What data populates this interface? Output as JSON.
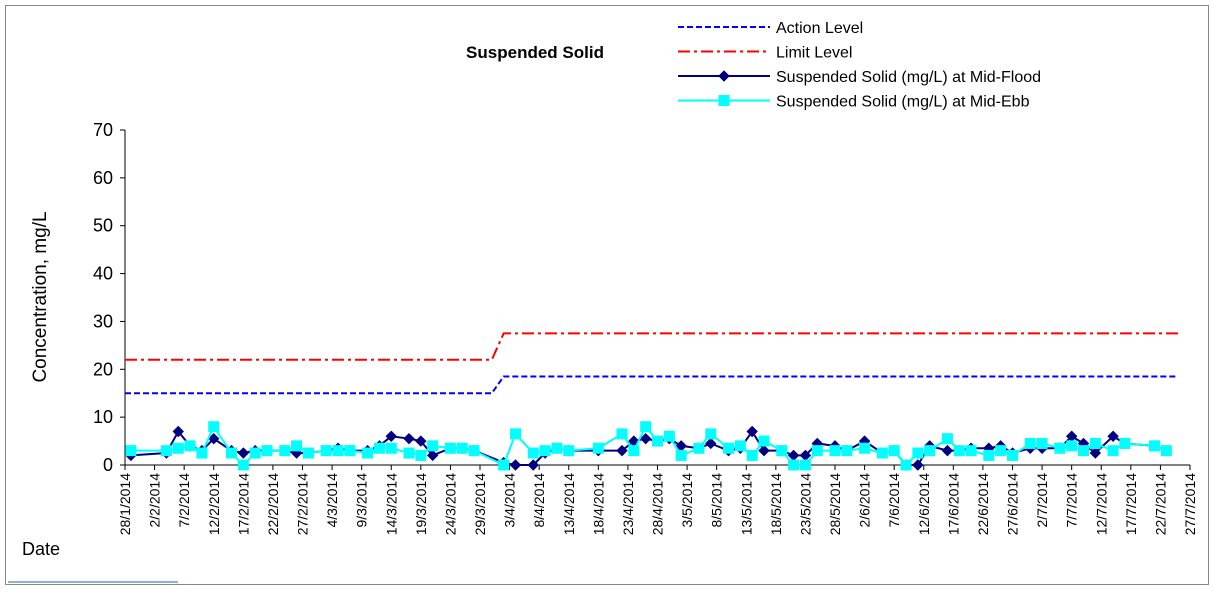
{
  "chart_data": {
    "type": "line",
    "title": "Suspended Solid",
    "ylabel": "Concentration, mg/L",
    "xlabel": "Date",
    "xlim": [
      "28/1/2014",
      "27/7/2014"
    ],
    "xticks": [
      "28/1/2014",
      "2/2/2014",
      "7/2/2014",
      "12/2/2014",
      "17/2/2014",
      "22/2/2014",
      "27/2/2014",
      "4/3/2014",
      "9/3/2014",
      "14/3/2014",
      "19/3/2014",
      "24/3/2014",
      "29/3/2014",
      "3/4/2014",
      "8/4/2014",
      "13/4/2014",
      "18/4/2014",
      "23/4/2014",
      "28/4/2014",
      "3/5/2014",
      "8/5/2014",
      "13/5/2014",
      "18/5/2014",
      "23/5/2014",
      "28/5/2014",
      "2/6/2014",
      "7/6/2014",
      "12/6/2014",
      "17/6/2014",
      "22/6/2014",
      "27/6/2014",
      "2/7/2014",
      "7/7/2014",
      "12/7/2014",
      "17/7/2014",
      "22/7/2014",
      "27/7/2014"
    ],
    "ylim": [
      0,
      70
    ],
    "yticks": [
      0,
      10,
      20,
      30,
      40,
      50,
      60,
      70
    ],
    "series": [
      {
        "name": "Action Level",
        "color": "#0000ff",
        "line_style": "dashed",
        "marker": null,
        "x": [
          "28/1/2014",
          "31/3/2014",
          "2/4/2014",
          "25/7/2014"
        ],
        "values": [
          15,
          15,
          18.5,
          18.5
        ]
      },
      {
        "name": "Limit Level",
        "color": "#ff0000",
        "line_style": "dash-dot",
        "marker": null,
        "x": [
          "28/1/2014",
          "31/3/2014",
          "2/4/2014",
          "25/7/2014"
        ],
        "values": [
          22,
          22,
          27.5,
          27.5
        ]
      },
      {
        "name": "Suspended Solid (mg/L) at Mid-Flood",
        "color": "#000080",
        "line_style": "solid",
        "marker": "diamond",
        "x": [
          "29/1/2014",
          "4/2/2014",
          "6/2/2014",
          "8/2/2014",
          "10/2/2014",
          "12/2/2014",
          "15/2/2014",
          "17/2/2014",
          "19/2/2014",
          "21/2/2014",
          "24/2/2014",
          "26/2/2014",
          "28/2/2014",
          "3/3/2014",
          "5/3/2014",
          "7/3/2014",
          "10/3/2014",
          "12/3/2014",
          "14/3/2014",
          "17/3/2014",
          "19/3/2014",
          "21/3/2014",
          "24/3/2014",
          "26/3/2014",
          "28/3/2014",
          "2/4/2014",
          "4/4/2014",
          "7/4/2014",
          "9/4/2014",
          "11/4/2014",
          "13/4/2014",
          "18/4/2014",
          "22/4/2014",
          "24/4/2014",
          "26/4/2014",
          "28/4/2014",
          "30/4/2014",
          "2/5/2014",
          "5/5/2014",
          "7/5/2014",
          "10/5/2014",
          "12/5/2014",
          "14/5/2014",
          "16/5/2014",
          "19/5/2014",
          "21/5/2014",
          "23/5/2014",
          "25/5/2014",
          "28/5/2014",
          "30/5/2014",
          "2/6/2014",
          "5/6/2014",
          "7/6/2014",
          "9/6/2014",
          "11/6/2014",
          "13/6/2014",
          "16/6/2014",
          "18/6/2014",
          "20/6/2014",
          "23/6/2014",
          "25/6/2014",
          "27/6/2014",
          "30/6/2014",
          "2/7/2014",
          "5/7/2014",
          "7/7/2014",
          "9/7/2014",
          "11/7/2014",
          "14/7/2014",
          "16/7/2014",
          "21/7/2014",
          "23/7/2014"
        ],
        "values": [
          2,
          2.5,
          7,
          4,
          3,
          5.5,
          3,
          2.5,
          3,
          3,
          3,
          2.5,
          2.5,
          3,
          3.5,
          3,
          3,
          4,
          6,
          5.5,
          5,
          2,
          3.5,
          3.5,
          3,
          0.5,
          0,
          0,
          2.5,
          3.5,
          3,
          3,
          3,
          5,
          5.5,
          5,
          5.5,
          4,
          3.5,
          4.5,
          3,
          3.5,
          7,
          3,
          3,
          2,
          2,
          4.5,
          4,
          3,
          5,
          2.5,
          3,
          0,
          0,
          4,
          3,
          3,
          3.5,
          3.5,
          4,
          2.5,
          3.5,
          3.5,
          3.5,
          6,
          4.5,
          2.5,
          6,
          4.5,
          4,
          3
        ]
      },
      {
        "name": "Suspended Solid (mg/L) at Mid-Ebb",
        "color": "#00ffff",
        "line_style": "solid",
        "marker": "square",
        "x": [
          "29/1/2014",
          "4/2/2014",
          "6/2/2014",
          "8/2/2014",
          "10/2/2014",
          "12/2/2014",
          "15/2/2014",
          "17/2/2014",
          "19/2/2014",
          "21/2/2014",
          "24/2/2014",
          "26/2/2014",
          "28/2/2014",
          "3/3/2014",
          "5/3/2014",
          "7/3/2014",
          "10/3/2014",
          "12/3/2014",
          "14/3/2014",
          "17/3/2014",
          "19/3/2014",
          "21/3/2014",
          "24/3/2014",
          "26/3/2014",
          "28/3/2014",
          "2/4/2014",
          "4/4/2014",
          "7/4/2014",
          "9/4/2014",
          "11/4/2014",
          "13/4/2014",
          "18/4/2014",
          "22/4/2014",
          "24/4/2014",
          "26/4/2014",
          "28/4/2014",
          "30/4/2014",
          "2/5/2014",
          "5/5/2014",
          "7/5/2014",
          "10/5/2014",
          "12/5/2014",
          "14/5/2014",
          "16/5/2014",
          "19/5/2014",
          "21/5/2014",
          "23/5/2014",
          "25/5/2014",
          "28/5/2014",
          "30/5/2014",
          "2/6/2014",
          "5/6/2014",
          "7/6/2014",
          "9/6/2014",
          "11/6/2014",
          "13/6/2014",
          "16/6/2014",
          "18/6/2014",
          "20/6/2014",
          "23/6/2014",
          "25/6/2014",
          "27/6/2014",
          "30/6/2014",
          "2/7/2014",
          "5/7/2014",
          "7/7/2014",
          "9/7/2014",
          "11/7/2014",
          "14/7/2014",
          "16/7/2014",
          "21/7/2014",
          "23/7/2014"
        ],
        "values": [
          3,
          3,
          3.5,
          4,
          2.5,
          8,
          2.5,
          0,
          2.5,
          3,
          3,
          4,
          2.5,
          3,
          3,
          3,
          2.5,
          3.5,
          3.5,
          2.5,
          2,
          4,
          3.5,
          3.5,
          3,
          0,
          6.5,
          2.5,
          3,
          3.5,
          3,
          3.5,
          6.5,
          3,
          8,
          5,
          6,
          2,
          3.5,
          6.5,
          3.5,
          4,
          2,
          5,
          3,
          0,
          0,
          3,
          3,
          3,
          3.5,
          2.5,
          3,
          0,
          2.5,
          3,
          5.5,
          3,
          3,
          2,
          3,
          2,
          4.5,
          4.5,
          3.5,
          4,
          3,
          4.5,
          3,
          4.5,
          4,
          3
        ]
      }
    ]
  }
}
